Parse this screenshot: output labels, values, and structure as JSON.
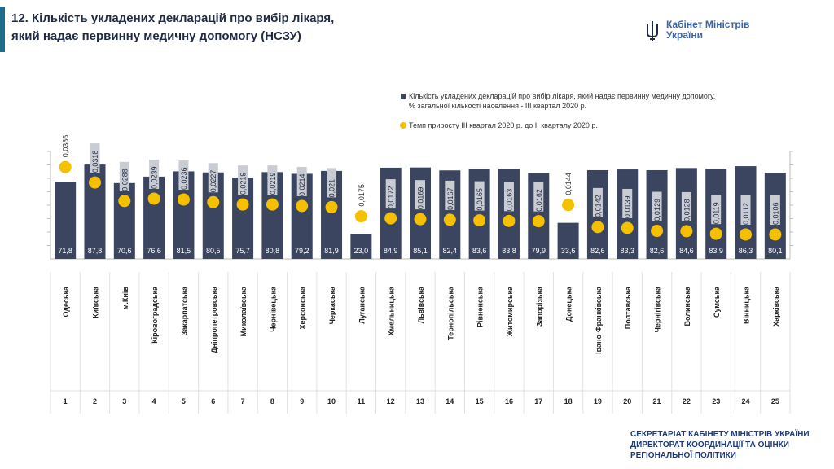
{
  "header": {
    "title_line1": "12. Кількість укладених декларацій про вибір лікаря,",
    "title_line2": "який надає первинну медичну допомогу (НСЗУ)"
  },
  "logo": {
    "line1": "Кабінет Міністрів",
    "line2": "України",
    "icon": "trident-icon"
  },
  "footer": {
    "line1": "СЕКРЕТАРІАТ КАБІНЕТУ МІНІСТРІВ УКРАЇНИ",
    "line2": "ДИРЕКТОРАТ КООРДИНАЦІЇ ТА ОЦІНКИ",
    "line3": "РЕГІОНАЛЬНОЇ ПОЛІТИКИ"
  },
  "colors": {
    "bar": "#3b4560",
    "dot": "#f5c000",
    "accent": "#1f6b8a",
    "footer": "#1e3a78",
    "logo": "#3a63a8"
  },
  "chart_data": {
    "type": "bar",
    "legend_position": "top-right",
    "grid": false,
    "categories": [
      "Одеська",
      "Київська",
      "м.Київ",
      "Кіровоградська",
      "Закарпатська",
      "Дніпропетровська",
      "Миколаївська",
      "Чернівецька",
      "Херсонська",
      "Черкаська",
      "Луганська",
      "Хмельницька",
      "Львівська",
      "Тернопільська",
      "Рівненська",
      "Житомирська",
      "Запорізька",
      "Донецька",
      "Івано-Франківська",
      "Полтавська",
      "Чернігівська",
      "Волинська",
      "Сумська",
      "Вінницька",
      "Харківська"
    ],
    "ranks": [
      "1",
      "2",
      "3",
      "4",
      "5",
      "6",
      "7",
      "8",
      "9",
      "10",
      "11",
      "12",
      "13",
      "14",
      "15",
      "16",
      "17",
      "18",
      "19",
      "20",
      "21",
      "22",
      "23",
      "24",
      "25"
    ],
    "series": [
      {
        "name": "Кількість укладених декларацій про вибір лікаря, який надає первинну медичну допомогу,",
        "name_line2": "% загальної кількості населення - III квартал 2020 р.",
        "type": "bar",
        "values": [
          "71,8",
          "87,8",
          "70,6",
          "76,6",
          "81,5",
          "80,5",
          "75,7",
          "80,8",
          "79,2",
          "81,9",
          "23,0",
          "84,9",
          "85,1",
          "82,4",
          "83,6",
          "83,8",
          "79,9",
          "33,6",
          "82,6",
          "83,3",
          "82,6",
          "84,6",
          "83,9",
          "86,3",
          "80,1"
        ]
      },
      {
        "name": "Темп приросту III квартал 2020 р. до II кварталу 2020 р.",
        "type": "scatter",
        "values": [
          "0,0386",
          "0,0318",
          "0,0288",
          "0,0239",
          "0,0236",
          "0,0227",
          "0,0219",
          "0,0219",
          "0,0214",
          "0,021",
          "0,0175",
          "0,0172",
          "0,0169",
          "0,0167",
          "0,0165",
          "0,0163",
          "0,0162",
          "0,0144",
          "0,0142",
          "0,0139",
          "0,0129",
          "0,0128",
          "0,0119",
          "0,0112",
          "0,0106"
        ]
      }
    ]
  }
}
